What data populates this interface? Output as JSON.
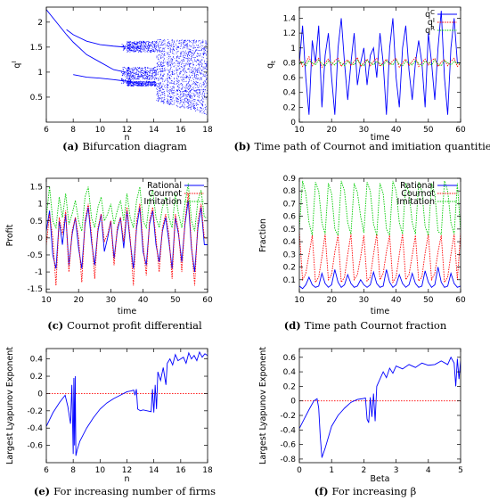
{
  "colors": {
    "blue": "#0000ff",
    "red": "#ff0000",
    "green": "#00cc00",
    "zero_line": "#ff0000"
  },
  "chart_data": [
    {
      "id": "a",
      "type": "scatter",
      "caption_letter": "(a)",
      "caption_text": "Bifurcation diagram",
      "xlabel": "n",
      "ylabel": "q",
      "xlim": [
        6,
        18
      ],
      "ylim": [
        0,
        2.3
      ],
      "xticks": [
        6,
        8,
        10,
        12,
        14,
        16,
        18
      ],
      "yticks": [
        0.5,
        1,
        1.5,
        2
      ],
      "yticklabels": [
        "0.5",
        "1",
        "1.5",
        "2"
      ],
      "fixed_point_branch": {
        "x": [
          6,
          7.5
        ],
        "y": [
          2.25,
          1.75
        ]
      },
      "period2_upper": {
        "x": [
          7.5,
          8,
          9,
          10,
          11,
          11.9
        ],
        "y": [
          1.85,
          1.75,
          1.62,
          1.55,
          1.52,
          1.5
        ]
      },
      "period2_lower": {
        "x": [
          7.5,
          8,
          9,
          10,
          11,
          11.9
        ],
        "y": [
          1.75,
          1.6,
          1.35,
          1.2,
          1.05,
          1.0
        ]
      },
      "period2_third": {
        "x": [
          8,
          9,
          10,
          11,
          11.9
        ],
        "y": [
          0.95,
          0.9,
          0.88,
          0.85,
          0.82
        ]
      },
      "chaos_band": {
        "x_start": 12,
        "x_end": 18,
        "y_range": [
          0.15,
          1.65
        ]
      },
      "series": []
    },
    {
      "id": "b",
      "type": "line",
      "caption_letter": "(b)",
      "caption_text": "Time path of Cournot and imitiation quantities",
      "xlabel": "time",
      "ylabel": "q",
      "xlim": [
        10,
        60
      ],
      "ylim": [
        0,
        1.55
      ],
      "xticks": [
        10,
        20,
        30,
        40,
        50,
        60
      ],
      "yticks": [
        0,
        0.2,
        0.4,
        0.6,
        0.8,
        1,
        1.2,
        1.4
      ],
      "yticklabels": [
        "0",
        "0.2",
        "0.4",
        "0.6",
        "0.8",
        "1",
        "1.2",
        "1.4"
      ],
      "legend_position": "top-right",
      "legend": [
        "q",
        "q",
        "q"
      ],
      "series": [
        {
          "color": "blue",
          "values": [
            0.8,
            1.3,
            0.6,
            0.1,
            1.1,
            0.8,
            1.3,
            0.2,
            0.9,
            1.2,
            0.6,
            0.1,
            1.0,
            1.4,
            0.8,
            0.3,
            0.8,
            1.2,
            0.5,
            0.8,
            1.0,
            0.5,
            0.9,
            1.0,
            0.6,
            1.2,
            0.8,
            0.1,
            1.0,
            1.4,
            0.6,
            0.2,
            1.0,
            1.3,
            0.7,
            0.3,
            0.8,
            1.1,
            0.8,
            0.2,
            1.2,
            0.8,
            0.3,
            1.0,
            1.5,
            0.6,
            0.1,
            1.0,
            1.4,
            0.8,
            0.8
          ]
        },
        {
          "color": "red",
          "values": [
            0.85,
            0.75,
            0.8,
            0.88,
            0.76,
            0.82,
            0.86,
            0.74,
            0.8,
            0.85,
            0.77,
            0.83,
            0.86,
            0.75,
            0.81,
            0.84,
            0.76,
            0.82,
            0.87,
            0.75,
            0.8,
            0.85,
            0.76,
            0.82,
            0.86,
            0.75,
            0.8,
            0.85,
            0.77,
            0.83,
            0.86,
            0.74,
            0.8,
            0.85,
            0.76,
            0.82,
            0.87,
            0.75,
            0.8,
            0.85,
            0.77,
            0.83,
            0.86,
            0.75,
            0.81,
            0.84,
            0.76,
            0.82,
            0.86,
            0.75,
            0.8
          ]
        },
        {
          "color": "green",
          "values": [
            0.78,
            0.82,
            0.76,
            0.83,
            0.8,
            0.77,
            0.84,
            0.79,
            0.76,
            0.82,
            0.8,
            0.77,
            0.83,
            0.79,
            0.76,
            0.82,
            0.8,
            0.77,
            0.84,
            0.78,
            0.76,
            0.83,
            0.8,
            0.77,
            0.82,
            0.79,
            0.76,
            0.83,
            0.8,
            0.77,
            0.84,
            0.78,
            0.76,
            0.82,
            0.8,
            0.77,
            0.83,
            0.79,
            0.76,
            0.82,
            0.8,
            0.77,
            0.84,
            0.78,
            0.76,
            0.83,
            0.8,
            0.77,
            0.82,
            0.79,
            0.8
          ]
        }
      ]
    },
    {
      "id": "c",
      "type": "line",
      "caption_letter": "(c)",
      "caption_text": "Cournot profit differential",
      "xlabel": "time",
      "ylabel": "Profit",
      "xlim": [
        10,
        60
      ],
      "ylim": [
        -1.6,
        1.75
      ],
      "xticks": [
        10,
        20,
        30,
        40,
        50,
        60
      ],
      "yticks": [
        -1.5,
        -1,
        -0.5,
        0,
        0.5,
        1,
        1.5
      ],
      "yticklabels": [
        "-1.5",
        "-1",
        "-0.5",
        "0",
        "0.5",
        "1",
        "1.5"
      ],
      "legend_position": "top-right",
      "legend": [
        "Rational",
        "Cournot",
        "Imitation"
      ],
      "series": [
        {
          "color": "blue",
          "values": [
            0.2,
            0.8,
            -0.5,
            -0.9,
            0.5,
            -0.2,
            0.7,
            -0.8,
            0.1,
            0.6,
            -0.3,
            -0.9,
            0.4,
            0.9,
            -0.1,
            -0.8,
            0.2,
            0.7,
            -0.4,
            0.0,
            0.5,
            -0.6,
            0.2,
            0.6,
            -0.3,
            0.8,
            -0.1,
            -0.9,
            0.3,
            0.9,
            -0.4,
            -0.8,
            0.4,
            0.8,
            -0.2,
            -0.7,
            0.2,
            0.6,
            -0.1,
            -0.9,
            0.6,
            0.1,
            -0.7,
            0.4,
            1.1,
            -0.3,
            -1.0,
            0.3,
            0.9,
            -0.2,
            -0.2
          ]
        },
        {
          "color": "red",
          "values": [
            -0.2,
            0.7,
            0.0,
            -1.4,
            0.6,
            0.1,
            0.8,
            -1.0,
            0.2,
            0.6,
            0.0,
            -1.3,
            0.5,
            1.0,
            0.1,
            -1.2,
            0.3,
            0.7,
            -0.1,
            0.1,
            0.5,
            -0.8,
            0.3,
            0.6,
            -0.1,
            0.9,
            0.0,
            -1.4,
            0.5,
            1.0,
            -0.2,
            -1.1,
            0.5,
            0.9,
            0.0,
            -1.0,
            0.3,
            0.7,
            0.1,
            -1.2,
            0.7,
            0.2,
            -1.0,
            0.5,
            1.3,
            -0.2,
            -1.4,
            0.5,
            1.0,
            0.0,
            0.0
          ]
        },
        {
          "color": "green",
          "values": [
            0.6,
            1.5,
            0.5,
            0.3,
            1.2,
            0.6,
            1.3,
            0.4,
            0.7,
            1.1,
            0.5,
            0.2,
            1.2,
            1.5,
            0.6,
            0.3,
            0.9,
            1.2,
            0.5,
            0.7,
            1.0,
            0.4,
            0.8,
            1.1,
            0.5,
            1.3,
            0.6,
            0.3,
            1.1,
            1.5,
            0.5,
            0.3,
            1.1,
            1.4,
            0.6,
            0.3,
            0.9,
            1.2,
            0.6,
            0.3,
            1.3,
            0.7,
            0.3,
            1.0,
            1.6,
            0.5,
            0.2,
            1.1,
            1.4,
            0.6,
            0.6
          ]
        }
      ]
    },
    {
      "id": "d",
      "type": "line",
      "caption_letter": "(d)",
      "caption_text": "Time path Cournot fraction",
      "xlabel": "time",
      "ylabel": "Fraction",
      "xlim": [
        10,
        60
      ],
      "ylim": [
        0,
        0.9
      ],
      "xticks": [
        10,
        20,
        30,
        40,
        50,
        60
      ],
      "yticks": [
        0.1,
        0.2,
        0.3,
        0.4,
        0.5,
        0.6,
        0.7,
        0.8,
        0.9
      ],
      "yticklabels": [
        "0.1",
        "0.2",
        "0.3",
        "0.4",
        "0.5",
        "0.6",
        "0.7",
        "0.8",
        "0.9"
      ],
      "legend_position": "top-right",
      "legend": [
        "Rational",
        "Cournot",
        "Imitation"
      ],
      "series": [
        {
          "color": "blue",
          "values": [
            0.05,
            0.03,
            0.06,
            0.12,
            0.06,
            0.04,
            0.05,
            0.15,
            0.07,
            0.04,
            0.06,
            0.18,
            0.08,
            0.04,
            0.06,
            0.14,
            0.07,
            0.04,
            0.05,
            0.1,
            0.06,
            0.04,
            0.06,
            0.16,
            0.07,
            0.04,
            0.05,
            0.18,
            0.08,
            0.04,
            0.06,
            0.14,
            0.07,
            0.04,
            0.06,
            0.15,
            0.07,
            0.04,
            0.05,
            0.17,
            0.08,
            0.04,
            0.06,
            0.2,
            0.08,
            0.04,
            0.05,
            0.15,
            0.07,
            0.04,
            0.05
          ]
        },
        {
          "color": "red",
          "values": [
            0.48,
            0.1,
            0.15,
            0.3,
            0.45,
            0.08,
            0.12,
            0.28,
            0.46,
            0.1,
            0.14,
            0.32,
            0.45,
            0.08,
            0.12,
            0.3,
            0.46,
            0.1,
            0.14,
            0.28,
            0.45,
            0.09,
            0.12,
            0.3,
            0.46,
            0.1,
            0.15,
            0.32,
            0.45,
            0.08,
            0.12,
            0.3,
            0.46,
            0.1,
            0.14,
            0.29,
            0.45,
            0.09,
            0.12,
            0.31,
            0.46,
            0.1,
            0.15,
            0.32,
            0.45,
            0.08,
            0.12,
            0.3,
            0.46,
            0.1,
            0.47
          ]
        },
        {
          "color": "green",
          "values": [
            0.5,
            0.88,
            0.78,
            0.55,
            0.45,
            0.87,
            0.8,
            0.55,
            0.46,
            0.86,
            0.78,
            0.5,
            0.45,
            0.88,
            0.8,
            0.55,
            0.46,
            0.86,
            0.79,
            0.6,
            0.47,
            0.87,
            0.8,
            0.54,
            0.45,
            0.86,
            0.78,
            0.5,
            0.45,
            0.88,
            0.8,
            0.55,
            0.46,
            0.86,
            0.79,
            0.55,
            0.46,
            0.87,
            0.8,
            0.52,
            0.45,
            0.86,
            0.78,
            0.48,
            0.46,
            0.88,
            0.8,
            0.55,
            0.46,
            0.86,
            0.48
          ]
        }
      ]
    },
    {
      "id": "e",
      "type": "line",
      "caption_letter": "(e)",
      "caption_text": "For increasing number of firms",
      "xlabel": "n",
      "ylabel": "Largest Lyapunov Exponent",
      "xlim": [
        6,
        18
      ],
      "ylim": [
        -0.8,
        0.52
      ],
      "xticks": [
        6,
        8,
        10,
        12,
        14,
        16,
        18
      ],
      "yticks": [
        -0.6,
        -0.4,
        -0.2,
        0,
        0.2,
        0.4
      ],
      "yticklabels": [
        "-0.6",
        "-0.4",
        "-0.2",
        "0",
        "0.2",
        "0.4"
      ],
      "zero_line": true,
      "series": [
        {
          "color": "blue",
          "x": [
            6,
            6.5,
            7,
            7.4,
            7.6,
            7.8,
            7.9,
            8.0,
            8.05,
            8.1,
            8.15,
            8.2,
            8.3,
            8.5,
            9,
            9.5,
            10,
            10.5,
            11,
            11.5,
            12,
            12.3,
            12.5,
            12.6,
            12.7,
            12.8,
            13,
            13.2,
            13.5,
            13.8,
            13.9,
            14,
            14.1,
            14.2,
            14.3,
            14.5,
            14.7,
            14.9,
            15,
            15.2,
            15.4,
            15.6,
            15.8,
            16,
            16.2,
            16.4,
            16.6,
            16.8,
            17,
            17.2,
            17.4,
            17.6,
            17.8,
            18
          ],
          "y": [
            -0.38,
            -0.22,
            -0.1,
            -0.02,
            -0.15,
            -0.35,
            0.1,
            -0.7,
            0.18,
            -0.6,
            0.2,
            -0.72,
            -0.65,
            -0.55,
            -0.4,
            -0.28,
            -0.18,
            -0.11,
            -0.06,
            -0.02,
            0.02,
            0.03,
            0.04,
            -0.02,
            0.05,
            -0.18,
            -0.2,
            -0.19,
            -0.2,
            -0.21,
            0.05,
            -0.22,
            0.1,
            -0.18,
            0.25,
            0.15,
            0.3,
            0.1,
            0.35,
            0.4,
            0.33,
            0.45,
            0.38,
            0.4,
            0.42,
            0.35,
            0.47,
            0.4,
            0.44,
            0.38,
            0.48,
            0.42,
            0.46,
            0.44
          ]
        }
      ]
    },
    {
      "id": "f",
      "type": "line",
      "caption_letter": "(f)",
      "caption_text": "For increasing β",
      "xlabel": "Beta",
      "ylabel": "Largest Lyapunov Exponent",
      "xlim": [
        0,
        5
      ],
      "ylim": [
        -0.85,
        0.72
      ],
      "xticks": [
        0,
        1,
        2,
        3,
        4,
        5
      ],
      "yticks": [
        -0.8,
        -0.6,
        -0.4,
        -0.2,
        0,
        0.2,
        0.4,
        0.6
      ],
      "yticklabels": [
        "-0.8",
        "-0.6",
        "-0.4",
        "-0.2",
        "0",
        "0.2",
        "0.4",
        "0.6"
      ],
      "zero_line": true,
      "series": [
        {
          "color": "blue",
          "x": [
            0,
            0.15,
            0.3,
            0.45,
            0.55,
            0.6,
            0.65,
            0.7,
            0.8,
            0.9,
            1.0,
            1.2,
            1.4,
            1.6,
            1.8,
            1.95,
            2.05,
            2.1,
            2.15,
            2.2,
            2.25,
            2.3,
            2.35,
            2.4,
            2.5,
            2.6,
            2.7,
            2.8,
            2.9,
            3.0,
            3.2,
            3.4,
            3.6,
            3.8,
            4.0,
            4.2,
            4.4,
            4.6,
            4.7,
            4.8,
            4.85,
            4.9,
            4.95,
            5
          ],
          "y": [
            -0.38,
            -0.25,
            -0.12,
            0.0,
            0.03,
            -0.1,
            -0.5,
            -0.78,
            -0.65,
            -0.5,
            -0.35,
            -0.2,
            -0.1,
            -0.02,
            0.02,
            0.03,
            0.04,
            -0.25,
            -0.3,
            0.05,
            -0.22,
            0.1,
            -0.28,
            0.2,
            0.3,
            0.4,
            0.32,
            0.45,
            0.38,
            0.48,
            0.44,
            0.5,
            0.46,
            0.52,
            0.49,
            0.5,
            0.55,
            0.5,
            0.6,
            0.52,
            0.2,
            0.58,
            0.3,
            0.55
          ]
        }
      ]
    }
  ]
}
